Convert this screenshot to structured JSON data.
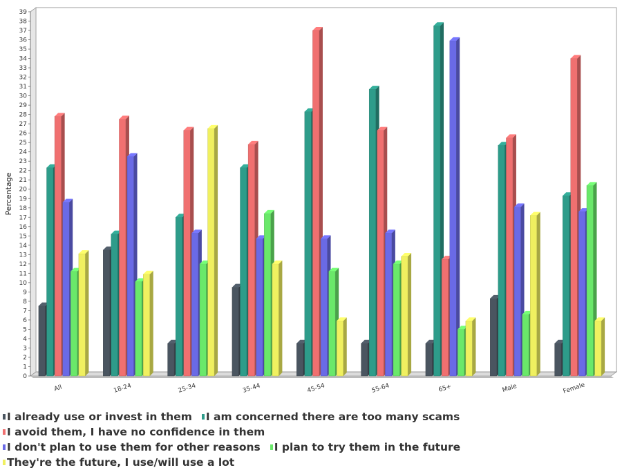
{
  "chart_data": {
    "type": "bar",
    "ylabel": "Percentage",
    "xlabel": "",
    "ylim": [
      0,
      39
    ],
    "ytick_step": 1,
    "grid": false,
    "legend_position": "bottom",
    "categories": [
      "All",
      "18-24",
      "25-34",
      "35-44",
      "45-54",
      "55-64",
      "65+",
      "Male",
      "Female"
    ],
    "series": [
      {
        "name": "I already use or invest in them",
        "color": "#4a5560",
        "values": [
          7.5,
          13.5,
          3.5,
          9.5,
          3.5,
          3.5,
          3.5,
          8.3,
          3.5
        ]
      },
      {
        "name": "I am concerned there are too many scams",
        "color": "#2e9c8a",
        "values": [
          22.3,
          15.2,
          17.0,
          22.3,
          28.3,
          30.7,
          37.5,
          24.7,
          19.3
        ]
      },
      {
        "name": "I avoid them, I have no confidence in them",
        "color": "#f07070",
        "values": [
          27.8,
          27.5,
          26.3,
          24.8,
          37.0,
          26.3,
          12.5,
          25.5,
          34.0
        ]
      },
      {
        "name": "I don't plan to use them for other reasons",
        "color": "#6a6ae6",
        "values": [
          18.6,
          23.5,
          15.3,
          14.7,
          14.7,
          15.3,
          35.9,
          18.1,
          17.6
        ]
      },
      {
        "name": "I plan to try them in the future",
        "color": "#6ae86a",
        "values": [
          11.2,
          10.1,
          12.0,
          17.4,
          11.2,
          12.0,
          5.0,
          6.6,
          20.4
        ]
      },
      {
        "name": "They're the future, I use/will use a lot",
        "color": "#f0f060",
        "values": [
          13.1,
          10.9,
          26.5,
          12.0,
          5.9,
          12.8,
          5.9,
          17.2,
          5.9
        ]
      }
    ]
  },
  "legend": {
    "rows": [
      [
        0,
        1
      ],
      [
        2
      ],
      [
        3,
        4
      ],
      [
        5
      ]
    ]
  }
}
